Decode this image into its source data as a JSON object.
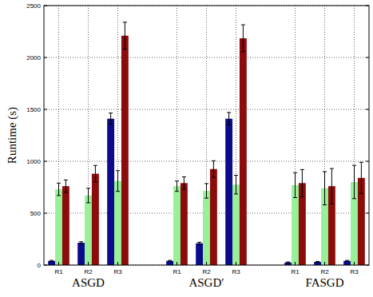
{
  "chart_data": {
    "type": "bar",
    "y_label": "Runtime (s)",
    "categories": [
      "R1",
      "R2",
      "R3",
      "R1",
      "R2",
      "R3",
      "R1",
      "R2",
      "R3"
    ],
    "group_labels": [
      "ASGD",
      "ASGD′",
      "FASGD"
    ],
    "series": [
      {
        "color": "#0b0b8c",
        "values": [
          40,
          215,
          1410,
          40,
          210,
          1410,
          25,
          30,
          40
        ],
        "errors": [
          5,
          10,
          55,
          5,
          10,
          60,
          5,
          5,
          5
        ]
      },
      {
        "color": "#98f098",
        "values": [
          730,
          670,
          810,
          760,
          715,
          775,
          770,
          740,
          800
        ],
        "errors": [
          60,
          70,
          100,
          50,
          70,
          90,
          120,
          160,
          160
        ]
      },
      {
        "color": "#8c0b0b",
        "values": [
          760,
          880,
          2210,
          790,
          925,
          2185,
          790,
          760,
          840
        ],
        "errors": [
          60,
          80,
          130,
          60,
          80,
          130,
          130,
          170,
          150
        ]
      }
    ],
    "ylim": [
      0,
      2500
    ],
    "yticks": [
      0,
      500,
      1000,
      1500,
      2000,
      2500
    ],
    "grid": true
  }
}
